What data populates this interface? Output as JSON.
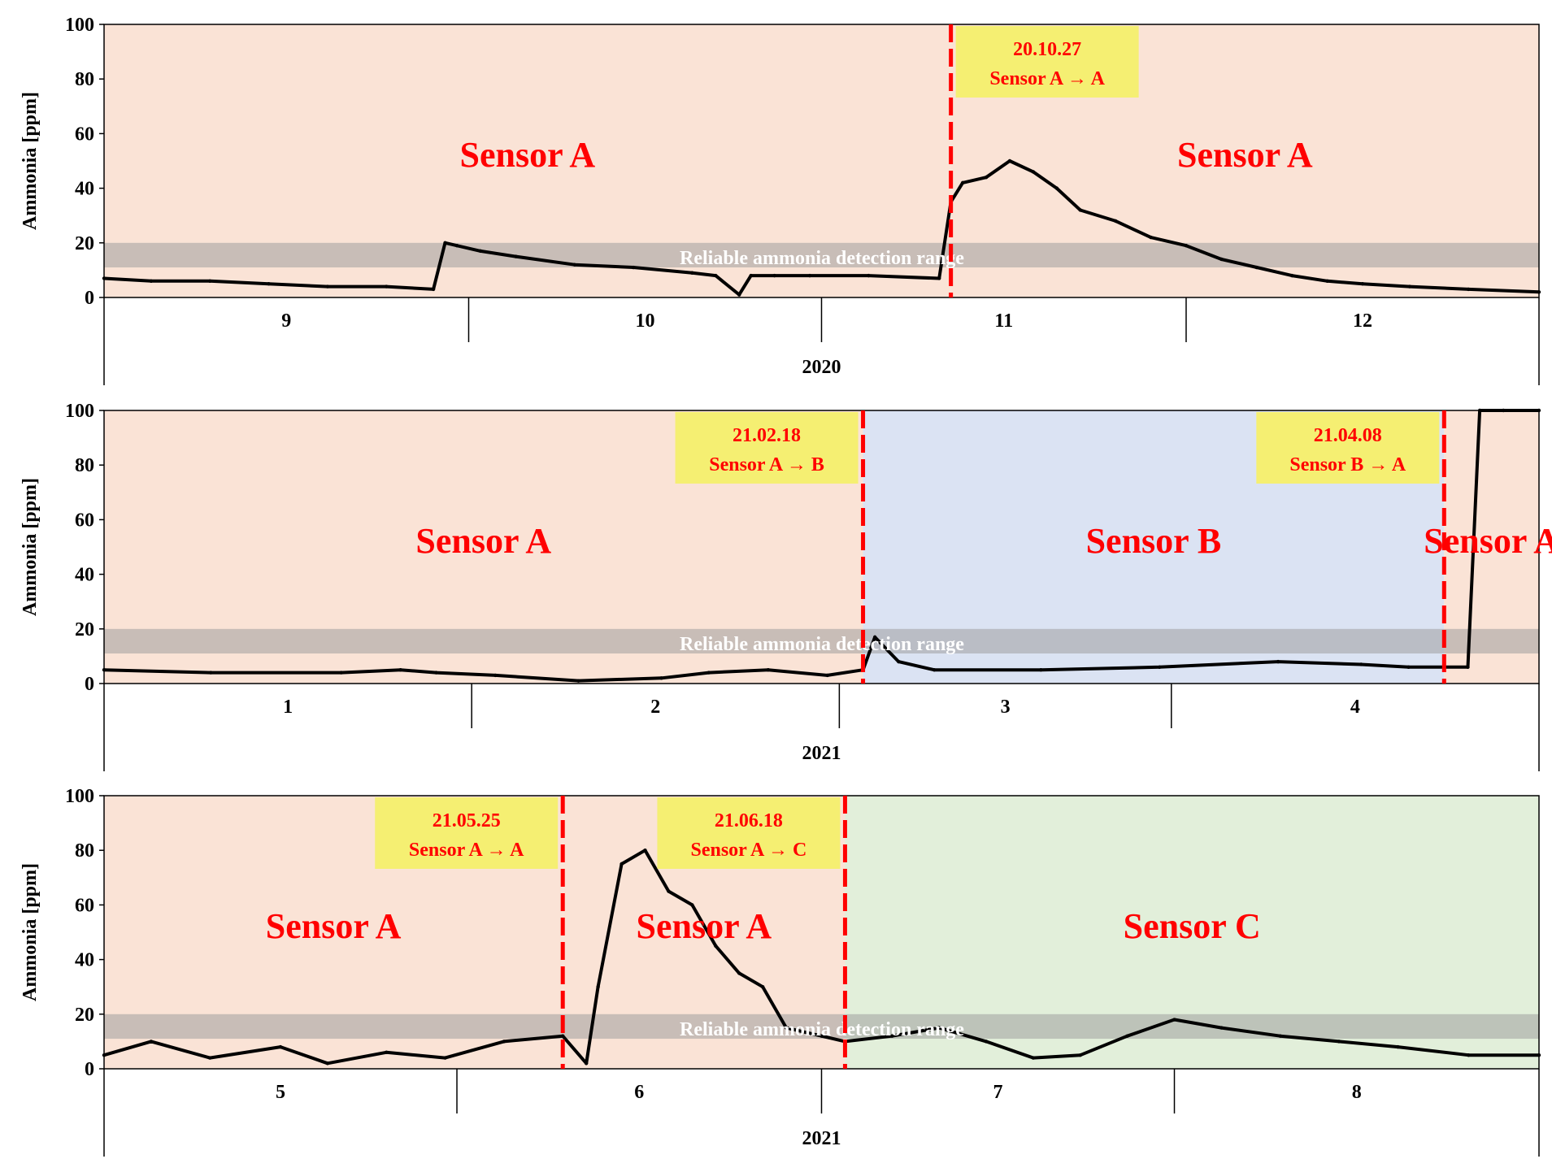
{
  "colors": {
    "sensor_a": "#fae3d6",
    "sensor_b": "#dbe3f3",
    "sensor_c": "#e2efda",
    "reliable_band": "#9e9e9e",
    "change_line": "#ff0000",
    "label_box": "#f5ef72",
    "sensor_label": "#ff0000",
    "series": "#000000"
  },
  "chart_data": [
    {
      "type": "line",
      "ylabel": "Ammonia [ppm]",
      "ylim": [
        0,
        100
      ],
      "yticks": [
        "0",
        "20",
        "40",
        "60",
        "80",
        "100"
      ],
      "xlim": [
        "2020-08-16",
        "2020-12-16"
      ],
      "months": [
        {
          "label": "9",
          "start": "2020-08-16",
          "end": "2020-09-16"
        },
        {
          "label": "10",
          "start": "2020-09-16",
          "end": "2020-10-16"
        },
        {
          "label": "11",
          "start": "2020-10-16",
          "end": "2020-11-16"
        },
        {
          "label": "12",
          "start": "2020-11-16",
          "end": "2020-12-16"
        }
      ],
      "year": "2020",
      "reliable_range": {
        "label": "Reliable ammonia detection range",
        "y": [
          11,
          20
        ]
      },
      "regions": [
        {
          "start": "2020-08-16",
          "end": "2020-10-27",
          "color": "#fae3d6",
          "label": "Sensor A"
        },
        {
          "start": "2020-10-27",
          "end": "2020-12-16",
          "color": "#fae3d6",
          "label": "Sensor A"
        }
      ],
      "changes": [
        {
          "date": "2020-10-27",
          "label": "20.10.27",
          "text": "Sensor A → A"
        }
      ],
      "series": [
        {
          "x": [
            "2020-08-16",
            "2020-08-20",
            "2020-08-25",
            "2020-08-30",
            "2020-09-04",
            "2020-09-09",
            "2020-09-13",
            "2020-09-14",
            "2020-09-15",
            "2020-09-17",
            "2020-09-20",
            "2020-09-25",
            "2020-09-30",
            "2020-10-05",
            "2020-10-07",
            "2020-10-09",
            "2020-10-10",
            "2020-10-12",
            "2020-10-15",
            "2020-10-20",
            "2020-10-26",
            "2020-10-27",
            "2020-10-28",
            "2020-10-30",
            "2020-11-01",
            "2020-11-03",
            "2020-11-05",
            "2020-11-07",
            "2020-11-10",
            "2020-11-13",
            "2020-11-16",
            "2020-11-19",
            "2020-11-22",
            "2020-11-25",
            "2020-11-28",
            "2020-12-01",
            "2020-12-05",
            "2020-12-10",
            "2020-12-16"
          ],
          "y": [
            7,
            6,
            6,
            5,
            4,
            4,
            3,
            20,
            19,
            17,
            15,
            12,
            11,
            9,
            8,
            1,
            8,
            8,
            8,
            8,
            7,
            35,
            42,
            44,
            50,
            46,
            40,
            32,
            28,
            22,
            19,
            14,
            11,
            8,
            6,
            5,
            4,
            3,
            2
          ]
        }
      ]
    },
    {
      "type": "line",
      "ylabel": "Ammonia [ppm]",
      "ylim": [
        0,
        100
      ],
      "yticks": [
        "0",
        "20",
        "40",
        "60",
        "80",
        "100"
      ],
      "xlim": [
        "2020-12-16",
        "2021-04-16"
      ],
      "months": [
        {
          "label": "1",
          "start": "2020-12-16",
          "end": "2021-01-16"
        },
        {
          "label": "2",
          "start": "2021-01-16",
          "end": "2021-02-16"
        },
        {
          "label": "3",
          "start": "2021-02-16",
          "end": "2021-03-16"
        },
        {
          "label": "4",
          "start": "2021-03-16",
          "end": "2021-04-16"
        }
      ],
      "year": "2021",
      "reliable_range": {
        "label": "Reliable ammonia detection range",
        "y": [
          11,
          20
        ]
      },
      "regions": [
        {
          "start": "2020-12-16",
          "end": "2021-02-18",
          "color": "#fae3d6",
          "label": "Sensor A"
        },
        {
          "start": "2021-02-18",
          "end": "2021-04-08",
          "color": "#dbe3f3",
          "label": "Sensor B"
        },
        {
          "start": "2021-04-08",
          "end": "2021-04-16",
          "color": "#fae3d6",
          "label": "Sensor A"
        }
      ],
      "changes": [
        {
          "date": "2021-02-18",
          "label": "21.02.18",
          "text": "Sensor A → B"
        },
        {
          "date": "2021-04-08",
          "label": "21.04.08",
          "text": "Sensor B → A"
        }
      ],
      "series": [
        {
          "x": [
            "2020-12-16",
            "2020-12-25",
            "2021-01-05",
            "2021-01-10",
            "2021-01-13",
            "2021-01-18",
            "2021-01-25",
            "2021-02-01",
            "2021-02-05",
            "2021-02-10",
            "2021-02-15",
            "2021-02-18",
            "2021-02-19",
            "2021-02-21",
            "2021-02-24",
            "2021-03-05",
            "2021-03-15",
            "2021-03-25",
            "2021-04-01",
            "2021-04-05",
            "2021-04-08",
            "2021-04-10",
            "2021-04-11",
            "2021-04-13",
            "2021-04-16"
          ],
          "y": [
            5,
            4,
            4,
            5,
            4,
            3,
            1,
            2,
            4,
            5,
            3,
            5,
            17,
            8,
            5,
            5,
            6,
            8,
            7,
            6,
            6,
            6,
            100,
            100,
            100
          ]
        }
      ]
    },
    {
      "type": "line",
      "ylabel": "Ammonia [ppm]",
      "ylim": [
        0,
        100
      ],
      "yticks": [
        "0",
        "20",
        "40",
        "60",
        "80",
        "100"
      ],
      "xlim": [
        "2021-04-16",
        "2021-08-16"
      ],
      "months": [
        {
          "label": "5",
          "start": "2021-04-16",
          "end": "2021-05-16"
        },
        {
          "label": "6",
          "start": "2021-05-16",
          "end": "2021-06-16"
        },
        {
          "label": "7",
          "start": "2021-06-16",
          "end": "2021-07-16"
        },
        {
          "label": "8",
          "start": "2021-07-16",
          "end": "2021-08-16"
        }
      ],
      "year": "2021",
      "reliable_range": {
        "label": "Reliable ammonia detection range",
        "y": [
          11,
          20
        ]
      },
      "regions": [
        {
          "start": "2021-04-16",
          "end": "2021-05-25",
          "color": "#fae3d6",
          "label": "Sensor A"
        },
        {
          "start": "2021-05-25",
          "end": "2021-06-18",
          "color": "#fae3d6",
          "label": "Sensor A"
        },
        {
          "start": "2021-06-18",
          "end": "2021-08-16",
          "color": "#e2efda",
          "label": "Sensor C"
        }
      ],
      "changes": [
        {
          "date": "2021-05-25",
          "label": "21.05.25",
          "text": "Sensor A → A"
        },
        {
          "date": "2021-06-18",
          "label": "21.06.18",
          "text": "Sensor A → C"
        }
      ],
      "series": [
        {
          "x": [
            "2021-04-16",
            "2021-04-20",
            "2021-04-25",
            "2021-05-01",
            "2021-05-05",
            "2021-05-10",
            "2021-05-15",
            "2021-05-20",
            "2021-05-25",
            "2021-05-27",
            "2021-05-28",
            "2021-05-30",
            "2021-06-01",
            "2021-06-03",
            "2021-06-05",
            "2021-06-07",
            "2021-06-09",
            "2021-06-11",
            "2021-06-13",
            "2021-06-16",
            "2021-06-18",
            "2021-06-22",
            "2021-06-26",
            "2021-06-30",
            "2021-07-04",
            "2021-07-08",
            "2021-07-12",
            "2021-07-16",
            "2021-07-20",
            "2021-07-25",
            "2021-07-30",
            "2021-08-04",
            "2021-08-10",
            "2021-08-16"
          ],
          "y": [
            5,
            10,
            4,
            8,
            2,
            6,
            4,
            10,
            12,
            2,
            30,
            75,
            80,
            65,
            60,
            45,
            35,
            30,
            15,
            12,
            10,
            12,
            15,
            10,
            4,
            5,
            12,
            18,
            15,
            12,
            10,
            8,
            5,
            5
          ]
        }
      ]
    }
  ]
}
